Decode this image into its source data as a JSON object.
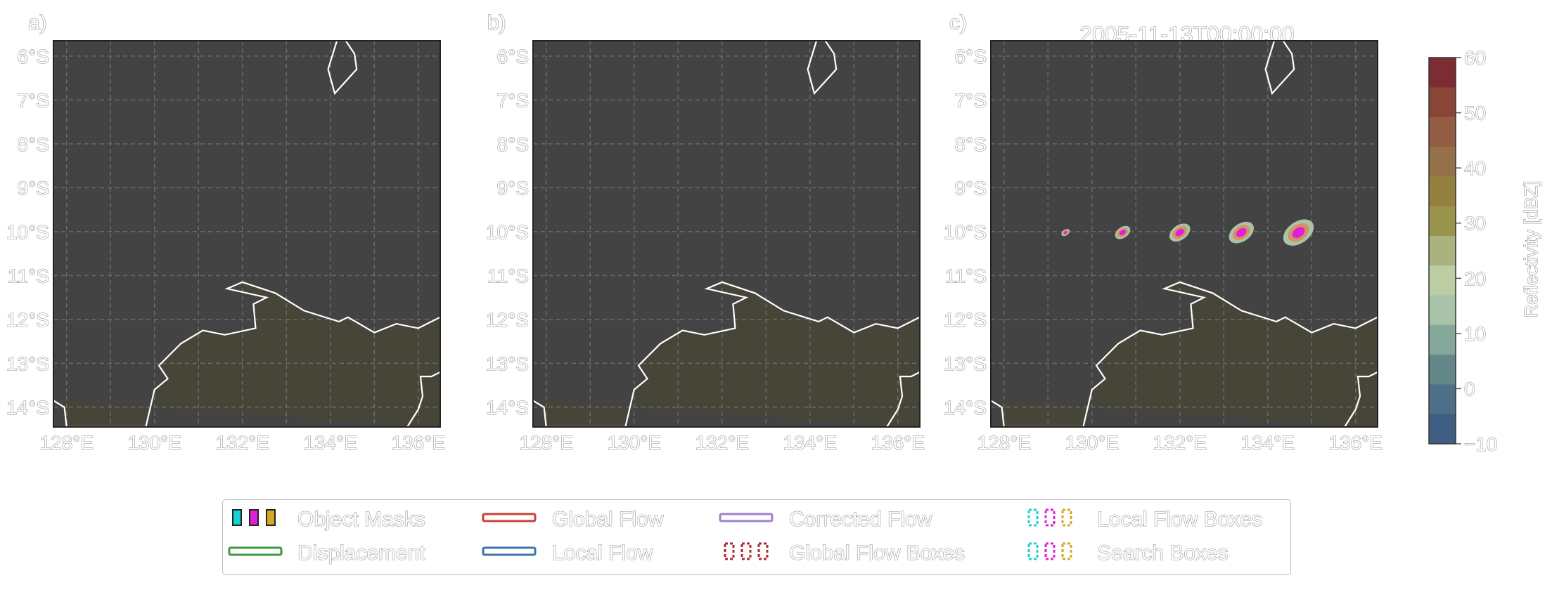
{
  "panels": [
    {
      "label": "a)",
      "title": ""
    },
    {
      "label": "b)",
      "title": ""
    },
    {
      "label": "c)",
      "title": "2005-11-13T00:00:00"
    }
  ],
  "axes": {
    "x_ticks": [
      "128°E",
      "130°E",
      "132°E",
      "134°E",
      "136°E"
    ],
    "y_ticks": [
      "6°S",
      "7°S",
      "8°S",
      "9°S",
      "10°S",
      "11°S",
      "12°S",
      "13°S",
      "14°S"
    ],
    "lon_values": [
      128,
      130,
      132,
      134,
      136
    ],
    "lat_values": [
      -6,
      -7,
      -8,
      -9,
      -10,
      -11,
      -12,
      -13,
      -14
    ],
    "lon_range": [
      127.7,
      136.5
    ],
    "lat_range": [
      -5.65,
      -14.45
    ]
  },
  "colorbar": {
    "label": "Reflectivity [dBZ]",
    "ticks": [
      "60",
      "50",
      "40",
      "30",
      "20",
      "10",
      "0",
      "−10"
    ],
    "colors": [
      "#7b2d33",
      "#8a4539",
      "#925d42",
      "#95714a",
      "#94803f",
      "#9a934c",
      "#aab37e",
      "#bccda3",
      "#a8c3a7",
      "#86a89b",
      "#64878a",
      "#4d6f88",
      "#3e5e84"
    ]
  },
  "storms": [
    {
      "lon": 129.4,
      "lat": -10.02,
      "size": 0.3
    },
    {
      "lon": 130.7,
      "lat": -10.02,
      "size": 0.55
    },
    {
      "lon": 132.0,
      "lat": -10.02,
      "size": 0.75
    },
    {
      "lon": 133.4,
      "lat": -10.02,
      "size": 0.9
    },
    {
      "lon": 134.7,
      "lat": -10.02,
      "size": 1.1
    }
  ],
  "legend": {
    "items": [
      {
        "key": "object_masks",
        "label": "Object Masks"
      },
      {
        "key": "global_flow",
        "label": "Global Flow"
      },
      {
        "key": "corrected_flow",
        "label": "Corrected Flow"
      },
      {
        "key": "local_flow_boxes",
        "label": "Local Flow Boxes"
      },
      {
        "key": "displacement",
        "label": "Displacement"
      },
      {
        "key": "local_flow",
        "label": "Local Flow"
      },
      {
        "key": "global_flow_boxes",
        "label": "Global Flow Boxes"
      },
      {
        "key": "search_boxes",
        "label": "Search Boxes"
      }
    ]
  },
  "colors": {
    "ocean": "#434344",
    "land": "#474537",
    "coast": "#ffffff",
    "grid": "#6a6a6a",
    "global_flow": "#c8403a",
    "local_flow": "#3b73b0",
    "corrected_flow": "#9f7fd0",
    "displacement": "#3b9a3b",
    "cyan": "#19d0d4",
    "magenta": "#e020d8",
    "gold": "#d5a822",
    "darkred": "#b0282a"
  }
}
